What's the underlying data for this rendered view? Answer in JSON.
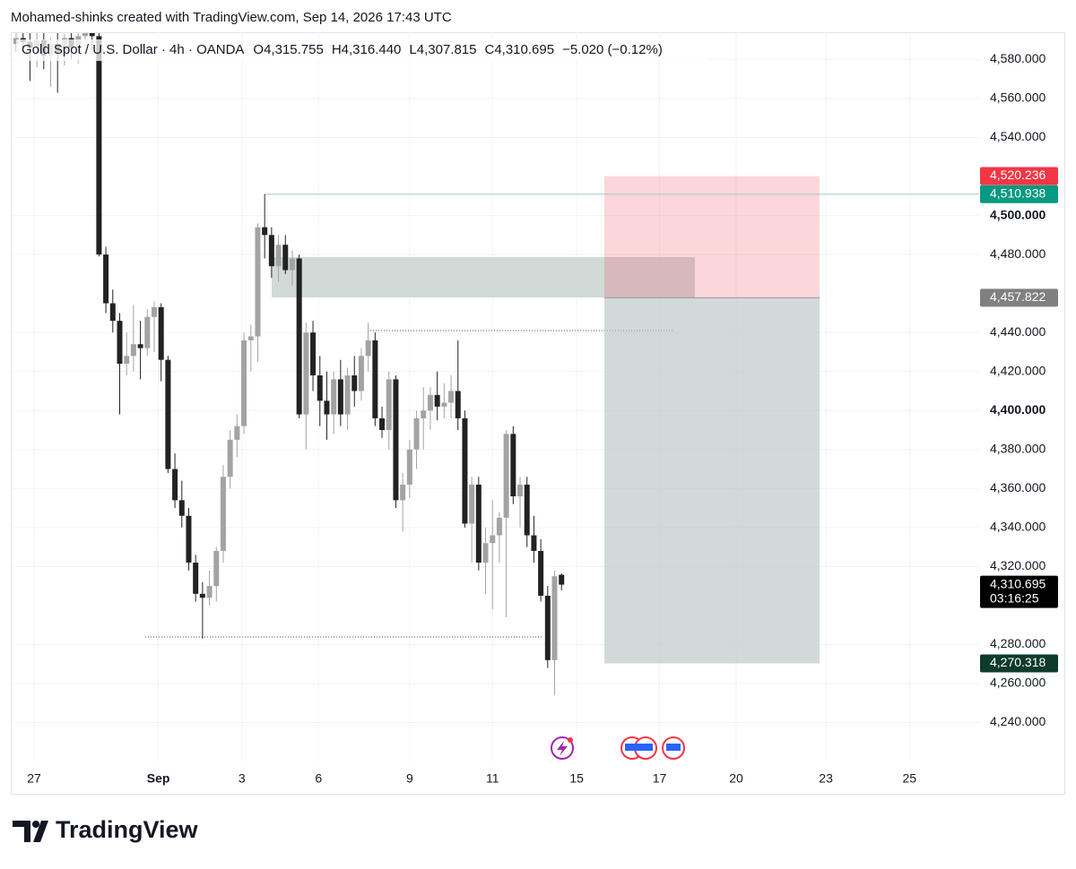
{
  "header": "Mohamed-shinks created with TradingView.com, Sep 14, 2026 17:43 UTC",
  "footer": "TradingView",
  "chart_data": {
    "type": "candlestick",
    "title": "Gold Spot / U.S. Dollar · 4h · OANDA",
    "legend_values": [
      "O4,315.755",
      "H4,316.440",
      "L4,307.815",
      "C4,310.695",
      "−5.020 (−0.12%)"
    ],
    "up_color": "#a3a3a3",
    "down_color": "#222222",
    "grid": true,
    "x": [
      0,
      1,
      2,
      3,
      4,
      5,
      6,
      7,
      8,
      9,
      10,
      11,
      12,
      13,
      14,
      15,
      16,
      17,
      18,
      19,
      20,
      21,
      22,
      23,
      24,
      25,
      26,
      27,
      28,
      29,
      30,
      31,
      32,
      33,
      34,
      35,
      36,
      37,
      38,
      39,
      40,
      41,
      42,
      43,
      44,
      45,
      46,
      47,
      48,
      49,
      50,
      51,
      52,
      53,
      54,
      55,
      56,
      57,
      58,
      59,
      60,
      61,
      62,
      63,
      64,
      65,
      66,
      67,
      68,
      69,
      70,
      71,
      72,
      73,
      74,
      75,
      76,
      77,
      78,
      79
    ],
    "open": [
      4588,
      4591,
      4589,
      4586,
      4590,
      4582,
      4588,
      4584,
      4591,
      4586,
      4592,
      4594,
      4592,
      4480,
      4455,
      4446,
      4424,
      4428,
      4434,
      4432,
      4448,
      4453,
      4426,
      4370,
      4354,
      4346,
      4322,
      4306,
      4304,
      4310,
      4328,
      4366,
      4385,
      4392,
      4436,
      4438,
      4494,
      4490,
      4474,
      4485,
      4472,
      4478,
      4398,
      4440,
      4418,
      4405,
      4398,
      4416,
      4398,
      4418,
      4410,
      4428,
      4436,
      4396,
      4390,
      4416,
      4354,
      4362,
      4380,
      4396,
      4400,
      4408,
      4402,
      4404,
      4410,
      4396,
      4342,
      4362,
      4322,
      4332,
      4336,
      4345,
      4388,
      4356,
      4362,
      4336,
      4328,
      4305,
      4272,
      4315.755
    ],
    "high": [
      4596,
      4597,
      4595,
      4594,
      4596,
      4591,
      4595,
      4593,
      4597,
      4594,
      4598,
      4600,
      4597,
      4484,
      4462,
      4450,
      4440,
      4454,
      4446,
      4452,
      4456,
      4455,
      4428,
      4378,
      4364,
      4350,
      4326,
      4312,
      4318,
      4330,
      4372,
      4390,
      4398,
      4440,
      4444,
      4496,
      4511,
      4494,
      4490,
      4490,
      4482,
      4480,
      4445,
      4446,
      4428,
      4420,
      4420,
      4426,
      4422,
      4428,
      4432,
      4445,
      4440,
      4402,
      4420,
      4418,
      4368,
      4385,
      4400,
      4412,
      4412,
      4420,
      4414,
      4418,
      4436,
      4400,
      4366,
      4366,
      4340,
      4354,
      4348,
      4390,
      4392,
      4366,
      4366,
      4346,
      4334,
      4310,
      4318,
      4316.44
    ],
    "low": [
      4584,
      4586,
      4569,
      4576,
      4575,
      4566,
      4563,
      4577,
      4580,
      4578,
      4582,
      4585,
      4479,
      4450,
      4440,
      4398,
      4418,
      4420,
      4416,
      4428,
      4430,
      4415,
      4368,
      4350,
      4340,
      4318,
      4302,
      4283,
      4300,
      4302,
      4322,
      4360,
      4376,
      4388,
      4420,
      4425,
      4478,
      4468,
      4466,
      4470,
      4464,
      4396,
      4380,
      4410,
      4392,
      4385,
      4388,
      4392,
      4390,
      4402,
      4405,
      4420,
      4392,
      4386,
      4380,
      4350,
      4338,
      4355,
      4370,
      4380,
      4390,
      4395,
      4396,
      4396,
      4390,
      4340,
      4322,
      4318,
      4306,
      4298,
      4322,
      4294,
      4352,
      4340,
      4330,
      4322,
      4302,
      4268,
      4254,
      4307.815
    ],
    "close": [
      4591,
      4589,
      4586,
      4590,
      4582,
      4588,
      4584,
      4591,
      4586,
      4592,
      4594,
      4592,
      4480,
      4455,
      4446,
      4424,
      4428,
      4434,
      4432,
      4448,
      4453,
      4426,
      4370,
      4354,
      4346,
      4322,
      4306,
      4304,
      4310,
      4328,
      4366,
      4385,
      4392,
      4436,
      4438,
      4494,
      4490,
      4474,
      4485,
      4472,
      4478,
      4398,
      4440,
      4418,
      4405,
      4398,
      4416,
      4398,
      4418,
      4410,
      4428,
      4436,
      4396,
      4390,
      4416,
      4354,
      4362,
      4380,
      4396,
      4400,
      4408,
      4402,
      4404,
      4410,
      4396,
      4342,
      4362,
      4322,
      4332,
      4336,
      4345,
      4388,
      4356,
      4362,
      4336,
      4328,
      4305,
      4272,
      4315,
      4310.695
    ],
    "xlim": [
      -0.78,
      139.5
    ],
    "xticks": [
      {
        "value": 2.6,
        "label": "27"
      },
      {
        "value": 20.6,
        "label": "Sep"
      },
      {
        "value": 32.7,
        "label": "3"
      },
      {
        "value": 43.8,
        "label": "6"
      },
      {
        "value": 57,
        "label": "9"
      },
      {
        "value": 69,
        "label": "11"
      },
      {
        "value": 81.2,
        "label": "15"
      },
      {
        "value": 93.2,
        "label": "17"
      },
      {
        "value": 104.3,
        "label": "20"
      },
      {
        "value": 117.3,
        "label": "23"
      },
      {
        "value": 129.4,
        "label": "25"
      }
    ],
    "ylim": [
      4220,
      4594
    ],
    "yticks": [
      {
        "value": 4580,
        "label": "4,580.000"
      },
      {
        "value": 4560,
        "label": "4,560.000"
      },
      {
        "value": 4540,
        "label": "4,540.000"
      },
      {
        "value": 4500,
        "label": "4,500.000"
      },
      {
        "value": 4480,
        "label": "4,480.000"
      },
      {
        "value": 4440,
        "label": "4,440.000"
      },
      {
        "value": 4420,
        "label": "4,420.000"
      },
      {
        "value": 4400,
        "label": "4,400.000"
      },
      {
        "value": 4380,
        "label": "4,380.000"
      },
      {
        "value": 4360,
        "label": "4,360.000"
      },
      {
        "value": 4340,
        "label": "4,340.000"
      },
      {
        "value": 4320,
        "label": "4,320.000"
      },
      {
        "value": 4280,
        "label": "4,280.000"
      },
      {
        "value": 4260,
        "label": "4,260.000"
      },
      {
        "value": 4240,
        "label": "4,240.000"
      }
    ],
    "price_tags": [
      {
        "value": 4520.236,
        "label": "4,520.236",
        "color": "#f23645"
      },
      {
        "value": 4510.938,
        "label": "4,510.938",
        "color": "#089981"
      },
      {
        "value": 4457.822,
        "label": "4,457.822",
        "color": "#808080"
      },
      {
        "value": 4310.695,
        "label": "4,310.695",
        "countdown": "03:16:25",
        "color": "#000000"
      },
      {
        "value": 4270.318,
        "label": "4,270.318",
        "color": "#0d3b2c"
      }
    ]
  }
}
